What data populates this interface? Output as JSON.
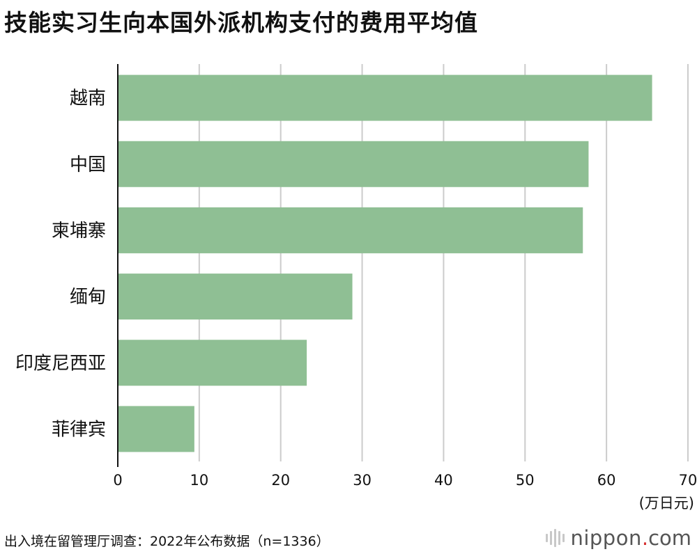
{
  "chart_data": {
    "type": "bar",
    "orientation": "horizontal",
    "title": "技能实习生向本国外派机构支付的费用平均值",
    "categories": [
      "越南",
      "中国",
      "柬埔寨",
      "缅甸",
      "印度尼西亚",
      "菲律宾"
    ],
    "values": [
      65.6,
      57.8,
      57.1,
      28.8,
      23.2,
      9.4
    ],
    "xlim": [
      0,
      70
    ],
    "xticks": [
      "0",
      "10",
      "20",
      "30",
      "40",
      "50",
      "60",
      "70"
    ],
    "unit": "(万日元)",
    "grid": true,
    "bar_color": "#8fbf94"
  },
  "source": "出入境在留管理厅调查：2022年公布数据（n=1336）",
  "logo": {
    "name": "nippon",
    "dot": ".",
    "tld": "com"
  }
}
